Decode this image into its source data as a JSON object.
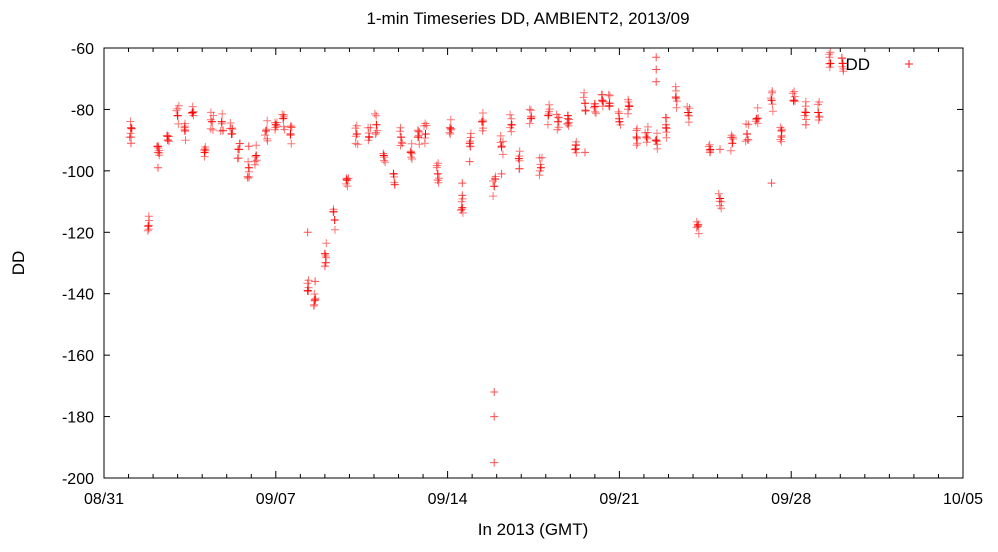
{
  "chart_data": {
    "type": "scatter",
    "title": "1-min Timeseries DD, AMBIENT2, 2013/09",
    "xlabel": "In 2013 (GMT)",
    "ylabel": "DD",
    "x_tick_labels": [
      "08/31",
      "09/07",
      "09/14",
      "09/21",
      "09/28",
      "10/05"
    ],
    "y_tick_labels": [
      "-60",
      "-80",
      "-100",
      "-120",
      "-140",
      "-160",
      "-180",
      "-200"
    ],
    "y_ticks": [
      -60,
      -80,
      -100,
      -120,
      -140,
      -160,
      -180,
      -200
    ],
    "xlim_days": [
      0,
      35
    ],
    "ylim": [
      -200,
      -60
    ],
    "legend_position": "top-right",
    "marker_color": "#ff0000",
    "series": [
      {
        "name": "DD",
        "x_day": [
          1.1,
          1.8,
          2.2,
          2.6,
          3.0,
          3.3,
          3.6,
          4.1,
          4.4,
          4.8,
          5.2,
          5.5,
          5.9,
          6.2,
          6.6,
          7.0,
          7.3,
          7.6,
          8.3,
          8.6,
          9.0,
          9.4,
          9.9,
          10.3,
          10.8,
          11.1,
          11.4,
          11.8,
          12.1,
          12.5,
          12.8,
          13.1,
          13.6,
          14.1,
          14.6,
          14.9,
          15.4,
          15.9,
          16.2,
          16.6,
          16.9,
          17.4,
          17.8,
          18.1,
          18.5,
          18.9,
          19.2,
          19.6,
          20.0,
          20.3,
          20.6,
          21.0,
          21.4,
          21.7,
          22.1,
          22.5,
          22.9,
          23.3,
          23.8,
          24.2,
          24.7,
          25.1,
          25.6,
          26.2,
          26.6,
          27.2,
          27.6,
          28.1,
          28.6,
          29.1,
          29.6,
          30.1
        ],
        "y": [
          -86,
          -118,
          -92,
          -90,
          -82,
          -87,
          -81,
          -94,
          -84,
          -84,
          -88,
          -93,
          -99,
          -95,
          -87,
          -85,
          -83,
          -88,
          -139,
          -142,
          -127,
          -116,
          -103,
          -88,
          -89,
          -85,
          -95,
          -101,
          -89,
          -94,
          -89,
          -88,
          -101,
          -86,
          -112,
          -91,
          -84,
          -105,
          -92,
          -85,
          -96,
          -83,
          -99,
          -82,
          -84,
          -82,
          -93,
          -78,
          -79,
          -77,
          -78,
          -84,
          -79,
          -89,
          -89,
          -90,
          -86,
          -76,
          -81,
          -118,
          -93,
          -109,
          -91,
          -88,
          -83,
          -77,
          -87,
          -77,
          -81,
          -81,
          -65,
          -65
        ],
        "outliers_x_day": [
          1.1,
          1.1,
          2.2,
          2.2,
          5.9,
          8.3,
          8.6,
          9.0,
          13.6,
          14.6,
          14.6,
          14.9,
          15.9,
          15.9,
          15.9,
          16.2,
          18.9,
          19.6,
          22.5,
          22.5,
          22.5,
          22.9,
          25.1,
          27.2,
          27.6,
          28.6,
          30.1
        ],
        "outliers_y": [
          -91,
          -89,
          -99,
          -94,
          -92,
          -120,
          -136,
          -131,
          -103,
          -104,
          -108,
          -97,
          -172,
          -180,
          -195,
          -101,
          -83,
          -94,
          -63,
          -67,
          -71,
          -85,
          -93,
          -104,
          -89,
          -85,
          -65
        ]
      }
    ]
  }
}
